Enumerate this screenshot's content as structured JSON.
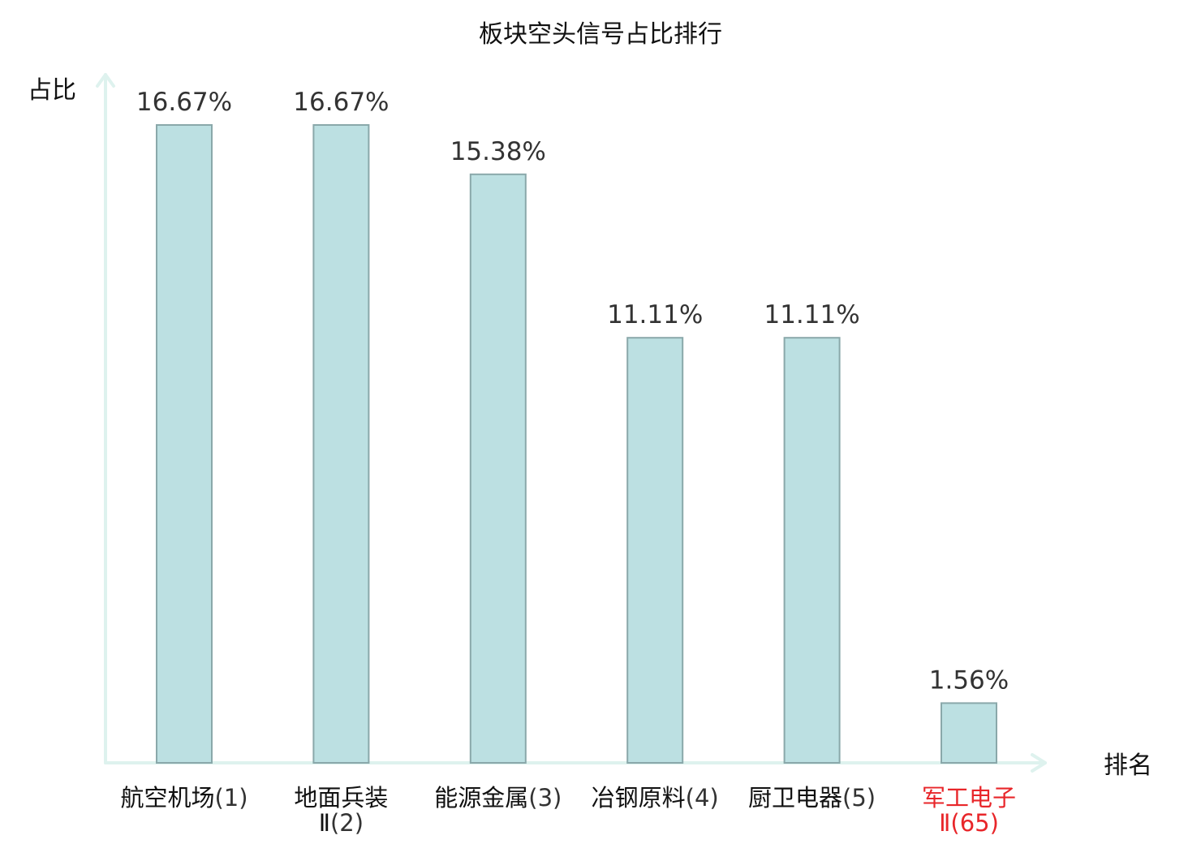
{
  "chart_data": {
    "type": "bar",
    "title": "板块空头信号占比排行",
    "ylabel": "占比",
    "xlabel": "排名",
    "categories": [
      {
        "name": [
          "航空机场"
        ],
        "rank": "(1)",
        "highlight": false
      },
      {
        "name": [
          "地面兵装",
          "Ⅱ"
        ],
        "rank": "(2)",
        "highlight": false
      },
      {
        "name": [
          "能源金属"
        ],
        "rank": "(3)",
        "highlight": false
      },
      {
        "name": [
          "冶钢原料"
        ],
        "rank": "(4)",
        "highlight": false
      },
      {
        "name": [
          "厨卫电器"
        ],
        "rank": "(5)",
        "highlight": false
      },
      {
        "name": [
          "军工电子",
          "Ⅱ"
        ],
        "rank": "(65)",
        "highlight": true
      }
    ],
    "values": [
      16.67,
      16.67,
      15.38,
      11.11,
      11.11,
      1.56
    ],
    "value_labels": [
      "16.67%",
      "16.67%",
      "15.38%",
      "11.11%",
      "11.11%",
      "1.56%"
    ],
    "ylim": [
      0,
      16.67
    ],
    "grid": false,
    "colors": {
      "bar_fill": "#bce0e2",
      "bar_stroke": "#8aa8aa",
      "axis": "#def2ee",
      "label": "#111111",
      "highlight": "#e8262a"
    }
  }
}
